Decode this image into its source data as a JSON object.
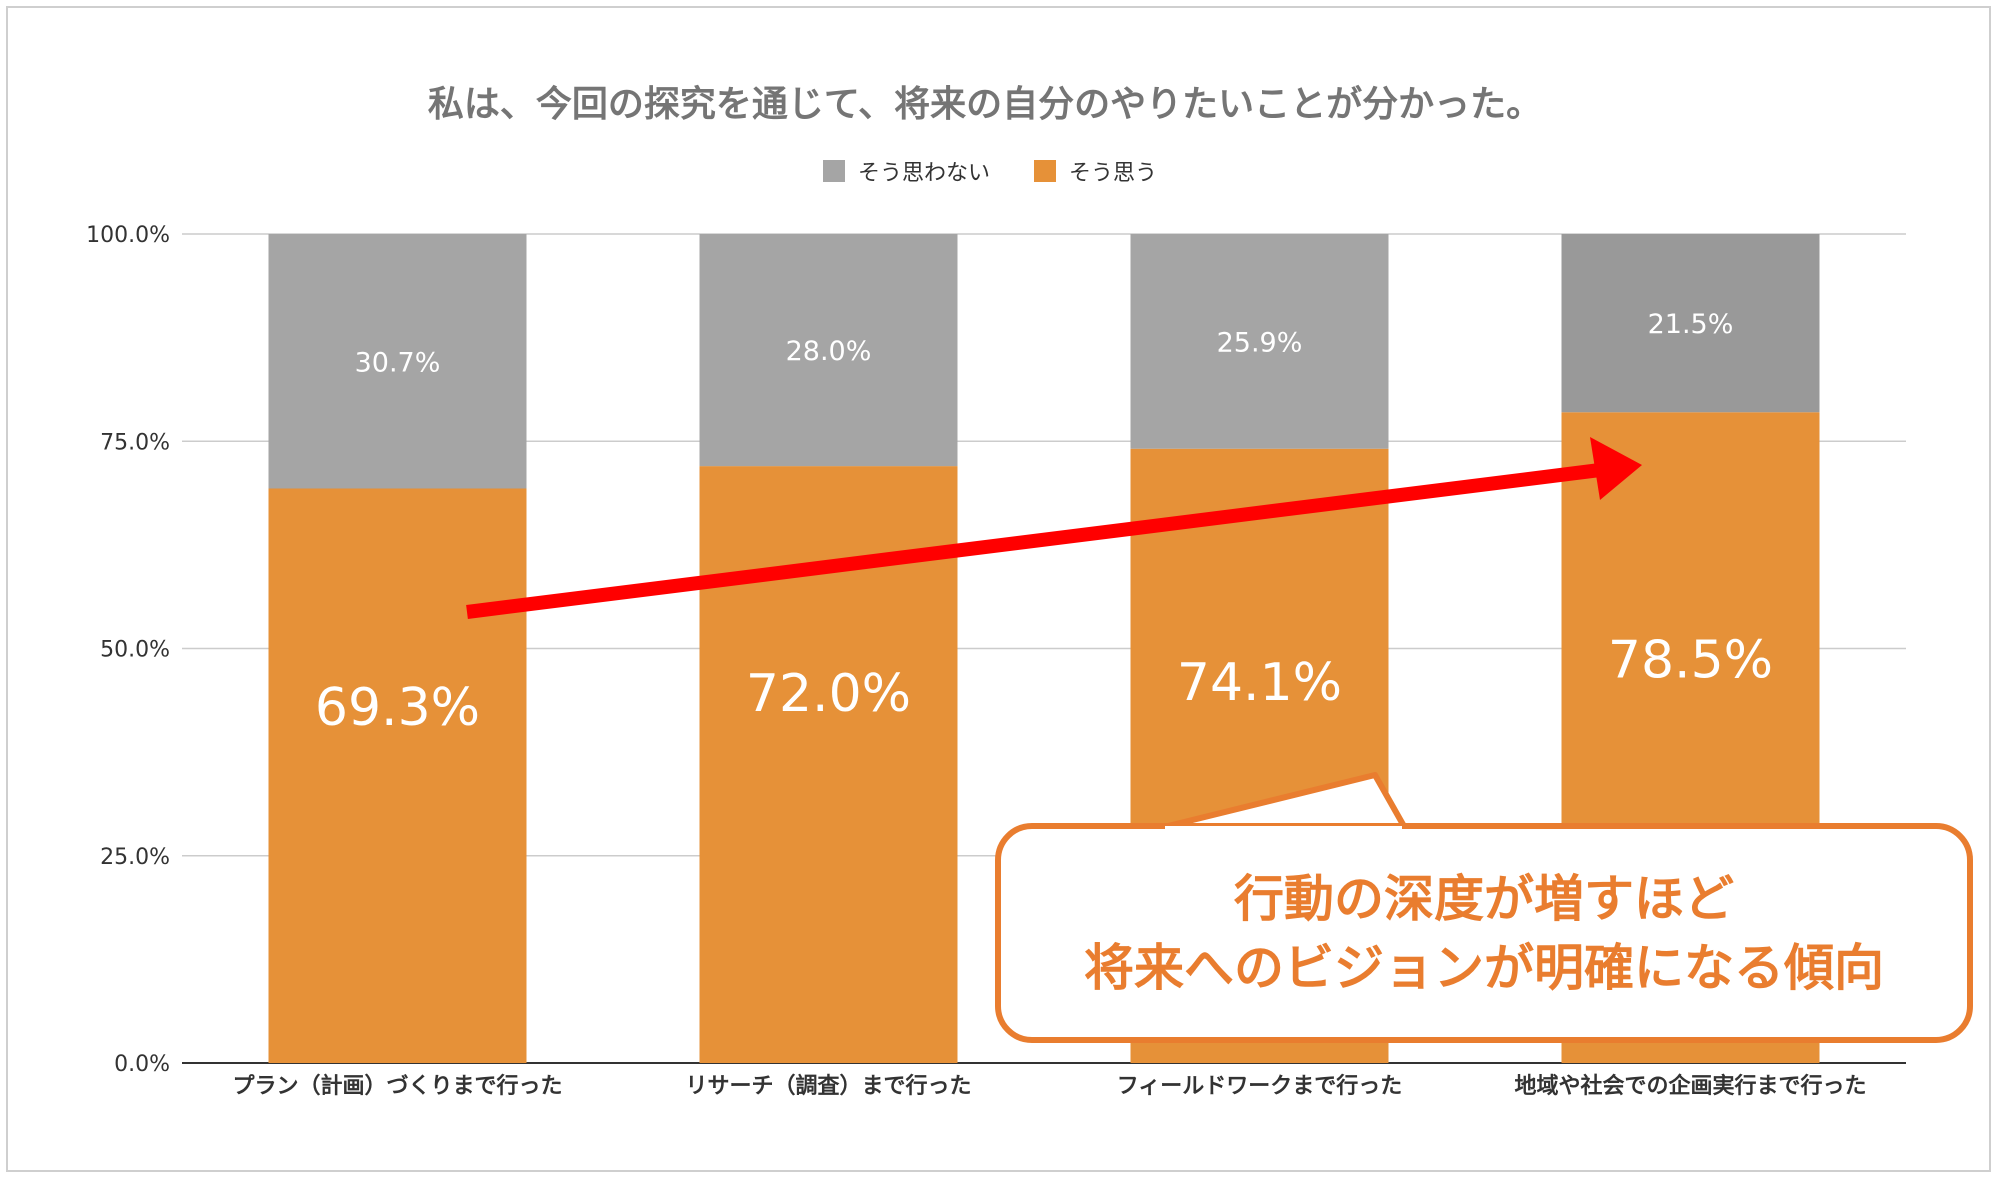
{
  "chart_data": {
    "type": "bar",
    "stacked": true,
    "title": "私は、今回の探究を通じて、将来の自分のやりたいことが分かった。",
    "categories": [
      "プラン（計画）づくりまで行った",
      "リサーチ（調査）まで行った",
      "フィールドワークまで行った",
      "地域や社会での企画実行まで行った"
    ],
    "series": [
      {
        "name": "そう思う",
        "color": "#e69138",
        "values": [
          69.3,
          72.0,
          74.1,
          78.5
        ],
        "labels": [
          "69.3%",
          "72.0%",
          "74.1%",
          "78.5%"
        ]
      },
      {
        "name": "そう思わない",
        "colors": [
          "#a5a5a5",
          "#a5a5a5",
          "#a5a5a5",
          "#999999"
        ],
        "color": "#a5a5a5",
        "values": [
          30.7,
          28.0,
          25.9,
          21.5
        ],
        "labels": [
          "30.7%",
          "28.0%",
          "25.9%",
          "21.5%"
        ]
      }
    ],
    "legend": {
      "position": "top",
      "items": [
        {
          "label": "そう思わない",
          "color": "#a5a5a5"
        },
        {
          "label": "そう思う",
          "color": "#e69138"
        }
      ]
    },
    "ylim": [
      0,
      100
    ],
    "yticks": [
      "0.0%",
      "25.0%",
      "50.0%",
      "75.0%",
      "100.0%"
    ],
    "ytick_values": [
      0,
      25,
      50,
      75,
      100
    ],
    "grid": true,
    "annotation": {
      "arrow_color": "#ff0000",
      "callout_lines": [
        "行動の深度が増すほど",
        "将来へのビジョンが明確になる傾向"
      ],
      "callout_border_color": "#e97d2f"
    }
  }
}
